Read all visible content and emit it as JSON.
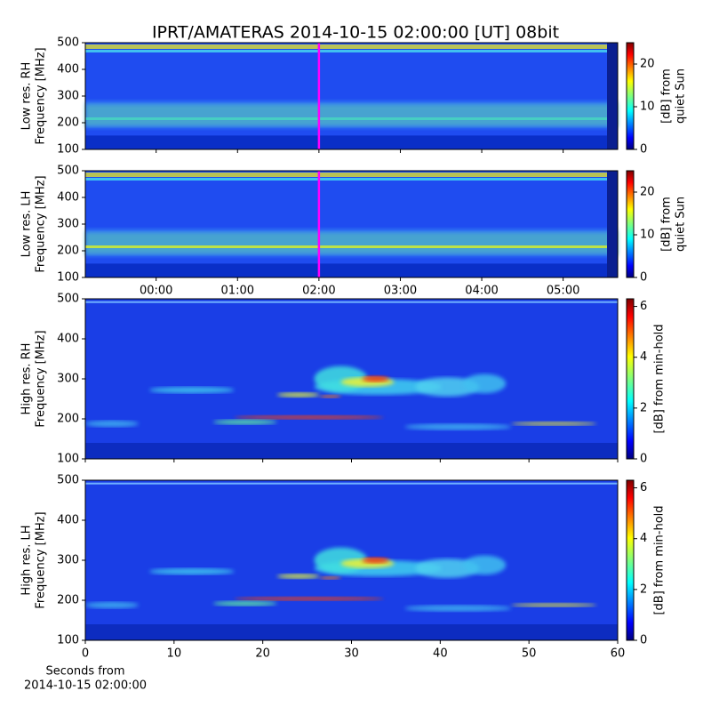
{
  "chart_data": [
    {
      "type": "heatmap",
      "title": "IPRT/AMATERAS 2014-10-15 02:00:00 [UT]   08bit",
      "ylabel": [
        "Low res. RH",
        "Frequency [MHz]"
      ],
      "ylim": [
        100,
        500
      ],
      "yticks": [
        100,
        200,
        300,
        400,
        500
      ],
      "xlim": [
        -0.87,
        5.67
      ],
      "xticks": [
        0,
        1,
        2,
        3,
        4,
        5
      ],
      "xtick_labels": false,
      "vline": {
        "value": 2,
        "color": "#ff00ff"
      },
      "colormap": "jet",
      "colorbar": {
        "label": [
          "[dB] from",
          "quiet Sun"
        ],
        "lim": [
          0,
          25
        ],
        "ticks": [
          0,
          10,
          20
        ]
      }
    },
    {
      "type": "heatmap",
      "ylabel": [
        "Low res. LH",
        "Frequency [MHz]"
      ],
      "ylim": [
        100,
        500
      ],
      "yticks": [
        100,
        200,
        300,
        400,
        500
      ],
      "xlim": [
        -0.87,
        5.67
      ],
      "xticks": [
        {
          "value": 0,
          "label": "00:00"
        },
        {
          "value": 1,
          "label": "01:00"
        },
        {
          "value": 2,
          "label": "02:00"
        },
        {
          "value": 3,
          "label": "03:00"
        },
        {
          "value": 4,
          "label": "04:00"
        },
        {
          "value": 5,
          "label": "05:00"
        }
      ],
      "xtick_labels": true,
      "vline": {
        "value": 2,
        "color": "#ff00ff"
      },
      "colormap": "jet",
      "colorbar": {
        "label": [
          "[dB] from",
          "quiet Sun"
        ],
        "lim": [
          0,
          25
        ],
        "ticks": [
          0,
          10,
          20
        ]
      }
    },
    {
      "type": "heatmap",
      "ylabel": [
        "High res. RH",
        "Frequency [MHz]"
      ],
      "ylim": [
        100,
        500
      ],
      "yticks": [
        100,
        200,
        300,
        400,
        500
      ],
      "xlim": [
        0,
        60
      ],
      "xticks": [
        0,
        10,
        20,
        30,
        40,
        50,
        60
      ],
      "xtick_labels": false,
      "colormap": "jet",
      "colorbar": {
        "label": [
          "[dB] from min-hold"
        ],
        "lim": [
          0,
          6.3
        ],
        "ticks": [
          0,
          2,
          4,
          6
        ]
      }
    },
    {
      "type": "heatmap",
      "ylabel": [
        "High res. LH",
        "Frequency [MHz]"
      ],
      "ylim": [
        100,
        500
      ],
      "yticks": [
        100,
        200,
        300,
        400,
        500
      ],
      "xlim": [
        0,
        60
      ],
      "xticks": [
        0,
        10,
        20,
        30,
        40,
        50,
        60
      ],
      "xtick_labels": true,
      "xlabel": [
        "Seconds from",
        "2014-10-15 02:00:00"
      ],
      "colormap": "jet",
      "colorbar": {
        "label": [
          "[dB] from min-hold"
        ],
        "lim": [
          0,
          6.3
        ],
        "ticks": [
          0,
          2,
          4,
          6
        ]
      }
    }
  ]
}
